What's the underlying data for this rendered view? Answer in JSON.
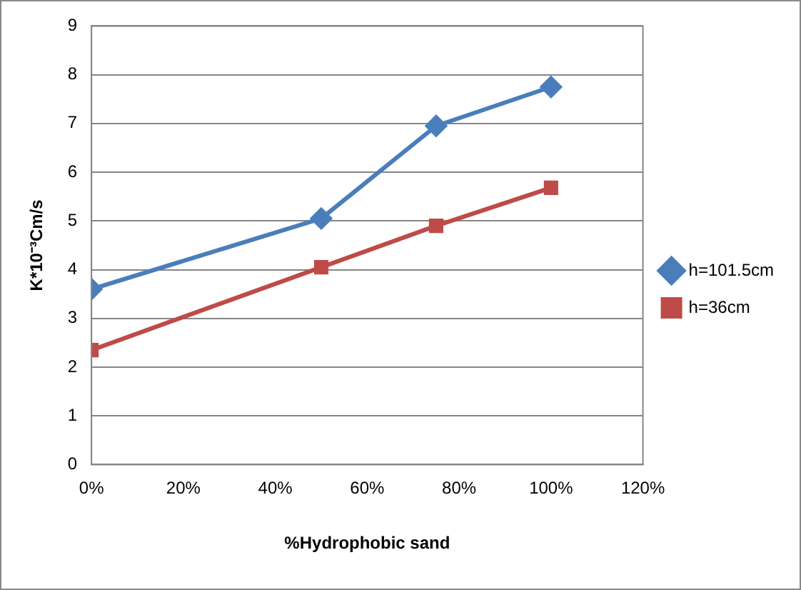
{
  "chart_data": {
    "type": "line",
    "xlabel": "%Hydrophobic sand",
    "ylabel": "K*10⁻³Cm/s",
    "x": [
      0,
      50,
      75,
      100
    ],
    "series": [
      {
        "name": "h=101.5cm",
        "color": "#4a7ebb",
        "values": [
          3.6,
          5.05,
          6.95,
          7.75
        ],
        "marker": "diamond"
      },
      {
        "name": "h=36cm",
        "color": "#be4b48",
        "values": [
          2.35,
          4.05,
          4.9,
          5.68
        ],
        "marker": "square"
      }
    ],
    "xlim": [
      0,
      120
    ],
    "xticks": [
      {
        "value": 0,
        "label": "0%"
      },
      {
        "value": 20,
        "label": "20%"
      },
      {
        "value": 40,
        "label": "40%"
      },
      {
        "value": 60,
        "label": "60%"
      },
      {
        "value": 80,
        "label": "80%"
      },
      {
        "value": 100,
        "label": "100%"
      },
      {
        "value": 120,
        "label": "120%"
      }
    ],
    "ylim": [
      0,
      9
    ],
    "yticks": [
      0,
      1,
      2,
      3,
      4,
      5,
      6,
      7,
      8,
      9
    ],
    "grid": "y",
    "legend": "right",
    "line_style": "solid"
  }
}
